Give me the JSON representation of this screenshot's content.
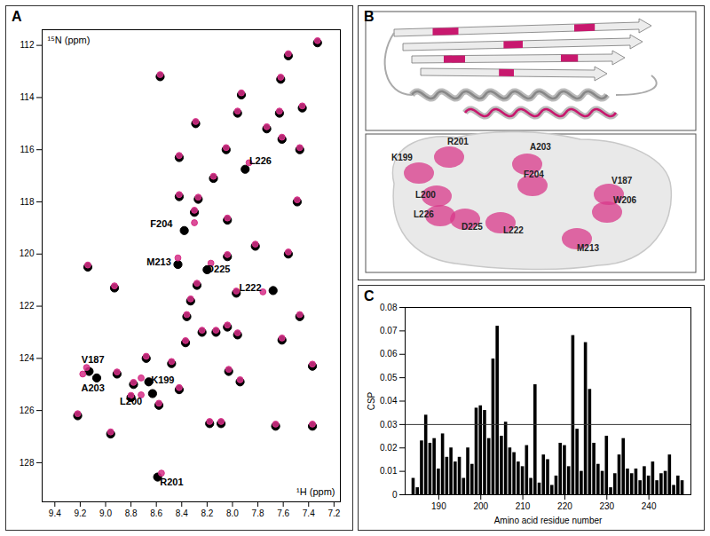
{
  "chart_data": [
    {
      "type": "scatter",
      "title": "A",
      "x_label": "¹H (ppm)",
      "y_label": "¹⁵N (ppm)",
      "marker": "circle",
      "xlim": [
        9.5,
        7.15
      ],
      "xticks": [
        9.4,
        9.2,
        {
          "value": 9,
          "label": "9.0"
        },
        8.8,
        8.6,
        8.4,
        8.2,
        {
          "value": 8,
          "label": "8.0"
        },
        7.8,
        7.6,
        7.4,
        7.2
      ],
      "ylim": [
        129.5,
        111.4
      ],
      "yticks": [
        112,
        114,
        116,
        118,
        120,
        122,
        124,
        126,
        128
      ],
      "series": [
        {
          "color": "#000000",
          "x": [
            7.33,
            7.56,
            7.62,
            8.57,
            7.93,
            7.45,
            7.63,
            7.96,
            8.29,
            7.73,
            7.61,
            8.05,
            7.47,
            8.42,
            7.9,
            8.15,
            8.42,
            8.27,
            7.49,
            8.3,
            8.04,
            7.82,
            8.38,
            8.43,
            8.04,
            7.56,
            8.2,
            9.14,
            7.68,
            8.93,
            8.28,
            7.97,
            8.33,
            7.47,
            8.36,
            8.04,
            8.13,
            7.61,
            7.96,
            8.37,
            8.24,
            9.13,
            9.07,
            8.91,
            8.68,
            8.48,
            8.78,
            8.66,
            8.63,
            8.58,
            8.42,
            8.03,
            7.94,
            7.37,
            9.22,
            8.18,
            8.09,
            7.66,
            7.37,
            8.96,
            8.59,
            8.8
          ],
          "values": [
            111.9,
            112.4,
            113.3,
            113.2,
            113.9,
            114.4,
            114.6,
            114.6,
            115.0,
            115.2,
            115.6,
            116.0,
            116.0,
            116.3,
            116.75,
            117.1,
            117.8,
            117.9,
            118.0,
            118.4,
            118.7,
            119.7,
            119.1,
            120.4,
            120.1,
            120.0,
            120.6,
            120.5,
            121.4,
            121.3,
            121.2,
            121.5,
            121.8,
            122.4,
            122.4,
            122.8,
            123.0,
            123.3,
            123.1,
            123.4,
            123.0,
            124.5,
            124.75,
            124.6,
            124.0,
            124.2,
            125.0,
            124.9,
            125.35,
            125.8,
            125.2,
            124.5,
            124.9,
            124.3,
            126.2,
            126.5,
            126.5,
            126.6,
            126.6,
            126.9,
            128.55,
            125.5
          ]
        },
        {
          "color": "#d62f87",
          "x": [
            7.33,
            7.56,
            7.62,
            8.57,
            7.93,
            7.45,
            7.63,
            7.96,
            8.29,
            7.73,
            7.61,
            8.05,
            7.47,
            8.42,
            7.87,
            8.15,
            8.42,
            8.27,
            7.49,
            8.3,
            8.04,
            7.82,
            8.3,
            8.43,
            8.04,
            7.56,
            8.17,
            9.14,
            7.76,
            8.93,
            8.28,
            7.97,
            8.33,
            7.47,
            8.36,
            8.04,
            8.13,
            7.61,
            7.96,
            8.37,
            8.24,
            9.15,
            9.18,
            8.91,
            8.68,
            8.48,
            8.78,
            8.72,
            8.72,
            8.58,
            8.42,
            8.03,
            7.94,
            7.37,
            9.22,
            8.18,
            8.09,
            7.66,
            7.37,
            8.96,
            8.56,
            8.8
          ],
          "values": [
            111.82,
            112.32,
            113.22,
            113.12,
            113.82,
            114.32,
            114.52,
            114.52,
            114.92,
            115.12,
            115.52,
            115.92,
            115.92,
            116.22,
            116.5,
            117.02,
            117.72,
            117.82,
            117.92,
            118.32,
            118.62,
            119.62,
            118.8,
            120.15,
            120.02,
            119.92,
            120.35,
            120.42,
            121.45,
            121.22,
            121.12,
            121.42,
            121.72,
            122.32,
            122.32,
            122.72,
            122.92,
            123.22,
            123.02,
            123.32,
            122.92,
            124.35,
            124.6,
            124.52,
            123.92,
            124.12,
            124.92,
            124.75,
            125.4,
            125.72,
            125.12,
            124.42,
            124.82,
            124.22,
            126.12,
            126.42,
            126.42,
            126.52,
            126.52,
            126.82,
            128.4,
            125.42
          ]
        }
      ],
      "annotations": [
        {
          "text": "L226",
          "x": 7.78,
          "y": 116.45
        },
        {
          "text": "F204",
          "x": 8.56,
          "y": 118.85
        },
        {
          "text": "M213",
          "x": 8.58,
          "y": 120.3
        },
        {
          "text": "D225",
          "x": 8.11,
          "y": 120.6
        },
        {
          "text": "L222",
          "x": 7.86,
          "y": 121.3
        },
        {
          "text": "V187",
          "x": 9.1,
          "y": 124.05
        },
        {
          "text": "A203",
          "x": 9.1,
          "y": 125.15
        },
        {
          "text": "K199",
          "x": 8.55,
          "y": 124.85
        },
        {
          "text": "L200",
          "x": 8.8,
          "y": 125.65
        },
        {
          "text": "R201",
          "x": 8.48,
          "y": 128.75
        }
      ]
    },
    {
      "type": "structure",
      "title": "B",
      "labels": [
        "R201",
        "A203",
        "K199",
        "F204",
        "V187",
        "L200",
        "W206",
        "L226",
        "D225",
        "L222",
        "M213"
      ]
    },
    {
      "type": "bar",
      "title": "C",
      "x_label": "Amino acid residue number",
      "y_label": "CSP",
      "color": "#000000",
      "x": [
        184,
        185,
        186,
        187,
        188,
        189,
        190,
        191,
        192,
        193,
        194,
        195,
        196,
        197,
        198,
        199,
        200,
        201,
        202,
        203,
        204,
        205,
        206,
        207,
        208,
        209,
        210,
        211,
        212,
        213,
        214,
        215,
        216,
        217,
        218,
        219,
        220,
        221,
        222,
        223,
        224,
        225,
        226,
        227,
        228,
        229,
        230,
        231,
        232,
        233,
        234,
        235,
        236,
        237,
        238,
        239,
        240,
        241,
        242,
        243,
        244,
        245,
        246,
        247,
        248
      ],
      "values": [
        0.007,
        0.003,
        0.023,
        0.034,
        0.022,
        0.024,
        0.011,
        0.026,
        0.016,
        0.02,
        0.014,
        0.016,
        0.007,
        0.02,
        0.013,
        0.037,
        0.038,
        0.036,
        0.024,
        0.058,
        0.072,
        0.025,
        0.031,
        0.02,
        0.018,
        0.014,
        0.012,
        0.021,
        0.007,
        0.047,
        0.005,
        0.017,
        0.015,
        0.004,
        0.008,
        0.022,
        0.021,
        0.012,
        0.068,
        0.028,
        0.01,
        0.065,
        0.045,
        0.022,
        0.013,
        0.01,
        0.025,
        0.003,
        0.009,
        0.017,
        0.024,
        0.011,
        0.009,
        0.011,
        0.006,
        0.012,
        0.008,
        0.014,
        0.006,
        0.009,
        0.01,
        0.017,
        0.004,
        0.008,
        0.006
      ],
      "threshold": 0.03,
      "xlim": [
        182,
        250
      ],
      "xticks": [
        190,
        200,
        210,
        220,
        230,
        240
      ],
      "ylim": [
        0,
        0.08
      ],
      "yticks": [
        0,
        0.01,
        0.02,
        0.03,
        0.04,
        0.05,
        0.06,
        0.07,
        0.08
      ]
    }
  ]
}
